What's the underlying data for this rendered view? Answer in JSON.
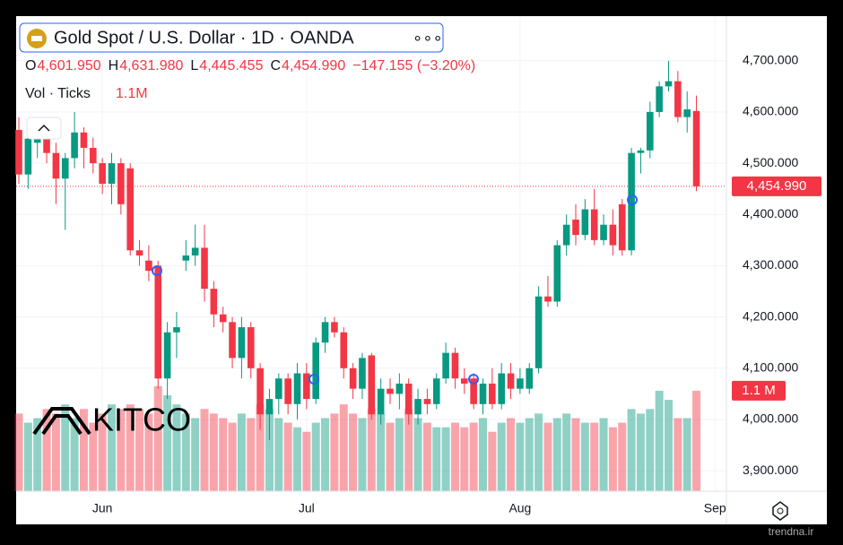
{
  "header": {
    "title": "Gold Spot / U.S. Dollar · 1D · OANDA",
    "ohlc": [
      {
        "key": "O",
        "value": "4,601.950"
      },
      {
        "key": "H",
        "value": "4,631.980"
      },
      {
        "key": "L",
        "value": "4,445.455"
      },
      {
        "key": "C",
        "value": "4,454.990"
      }
    ],
    "change": "−147.155 (−3.20%)",
    "volume_title": "Vol · Ticks",
    "volume_value": "1.1M"
  },
  "watermark": "KITCO",
  "footer": "trendna.ir",
  "chart_data": {
    "type": "candlestick",
    "categories": [
      null,
      null,
      null,
      null,
      null,
      null,
      null,
      null,
      null,
      "Jun",
      null,
      null,
      null,
      null,
      null,
      null,
      null,
      null,
      null,
      null,
      null,
      null,
      null,
      null,
      null,
      null,
      null,
      null,
      null,
      null,
      null,
      "Jul",
      null,
      null,
      null,
      null,
      null,
      null,
      null,
      null,
      null,
      null,
      null,
      null,
      null,
      null,
      null,
      null,
      null,
      null,
      null,
      null,
      null,
      null,
      "Aug",
      null,
      null,
      null,
      null,
      null,
      null,
      null,
      null,
      null,
      null,
      null,
      null,
      null,
      null,
      null,
      null,
      null,
      null,
      null,
      null,
      "Sep"
    ],
    "open": [
      4565,
      4478,
      4540,
      4560,
      4520,
      4470,
      4510,
      4560,
      4530,
      4500,
      4460,
      4500,
      4490,
      4330,
      4310,
      4300,
      4080,
      4170,
      4310,
      4320,
      4335,
      4255,
      4205,
      4190,
      4120,
      4180,
      4100,
      4010,
      4040,
      4080,
      4030,
      4090,
      4040,
      4150,
      4190,
      4170,
      4100,
      4060,
      4125,
      4010,
      4060,
      4050,
      4070,
      4010,
      4040,
      4030,
      4080,
      4130,
      4080,
      4080,
      4030,
      4070,
      4030,
      4090,
      4060,
      4060,
      4100,
      4240,
      4230,
      4340,
      4390,
      4360,
      4410,
      4350,
      4380,
      4420,
      4330,
      4520,
      4525,
      4600,
      4650,
      4660,
      4590,
      4601.95,
      null,
      null
    ],
    "high": [
      4590,
      4560,
      4580,
      4570,
      4540,
      4520,
      4600,
      4570,
      4550,
      4510,
      4520,
      4510,
      4500,
      4350,
      4340,
      4310,
      4190,
      4210,
      4350,
      4380,
      4380,
      4270,
      4220,
      4200,
      4200,
      4190,
      4110,
      4060,
      4090,
      4090,
      4110,
      4110,
      4160,
      4200,
      4200,
      4180,
      4110,
      4130,
      4130,
      4080,
      4080,
      4090,
      4080,
      4060,
      4060,
      4090,
      4150,
      4140,
      4100,
      4090,
      4080,
      4100,
      4110,
      4110,
      4100,
      4110,
      4260,
      4280,
      4350,
      4400,
      4420,
      4430,
      4450,
      4400,
      4410,
      4430,
      4530,
      4530,
      4620,
      4660,
      4700,
      4680,
      4640,
      4631.98,
      null,
      null
    ],
    "low": [
      4460,
      4450,
      4510,
      4500,
      4420,
      4370,
      4490,
      4490,
      4480,
      4440,
      4420,
      4400,
      4320,
      4300,
      4270,
      4060,
      4040,
      4120,
      4290,
      4300,
      4230,
      4180,
      4170,
      4100,
      4080,
      4080,
      3980,
      3960,
      4010,
      4010,
      4000,
      4020,
      4030,
      4130,
      4160,
      4080,
      4040,
      4040,
      4000,
      3990,
      4030,
      4020,
      3990,
      3990,
      4010,
      4020,
      4070,
      4060,
      4050,
      4020,
      4010,
      4020,
      4020,
      4040,
      4050,
      4050,
      4090,
      4220,
      4220,
      4320,
      4340,
      4350,
      4340,
      4340,
      4320,
      4320,
      4320,
      4480,
      4510,
      4590,
      4640,
      4580,
      4560,
      4445.455,
      null,
      null
    ],
    "close": [
      4478,
      4548,
      4560,
      4520,
      4470,
      4510,
      4560,
      4530,
      4500,
      4460,
      4500,
      4420,
      4330,
      4320,
      4290,
      4080,
      4170,
      4180,
      4320,
      4335,
      4255,
      4205,
      4190,
      4120,
      4180,
      4100,
      4010,
      4040,
      4080,
      4030,
      4090,
      4040,
      4150,
      4190,
      4170,
      4100,
      4060,
      4120,
      4010,
      4060,
      4050,
      4070,
      4010,
      4040,
      4030,
      4080,
      4130,
      4080,
      4070,
      4030,
      4070,
      4030,
      4090,
      4060,
      4080,
      4100,
      4240,
      4230,
      4340,
      4380,
      4360,
      4410,
      4350,
      4380,
      4340,
      4330,
      4520,
      4525,
      4600,
      4650,
      4660,
      4590,
      4605,
      4454.99,
      null,
      null
    ],
    "volume": [
      0.85,
      0.75,
      0.8,
      0.9,
      0.85,
      0.95,
      0.8,
      0.9,
      0.75,
      0.85,
      0.95,
      0.9,
      0.95,
      0.9,
      0.85,
      1.15,
      1.05,
      0.95,
      0.85,
      0.8,
      0.9,
      0.85,
      0.8,
      0.75,
      0.85,
      0.8,
      0.95,
      0.9,
      0.8,
      0.75,
      0.7,
      0.65,
      0.75,
      0.8,
      0.85,
      0.95,
      0.85,
      0.8,
      0.9,
      0.85,
      0.75,
      0.8,
      0.9,
      0.8,
      0.75,
      0.7,
      0.7,
      0.75,
      0.7,
      0.75,
      0.8,
      0.65,
      0.75,
      0.8,
      0.75,
      0.8,
      0.85,
      0.75,
      0.8,
      0.85,
      0.8,
      0.75,
      0.75,
      0.8,
      0.7,
      0.75,
      0.9,
      0.85,
      0.9,
      1.1,
      1.0,
      0.8,
      0.8,
      1.1,
      null,
      null
    ],
    "volume_label": "1.1 M",
    "volume_ylim": [
      0,
      5.2
    ],
    "last_price": {
      "value": 4454.99,
      "label": "4,454.990"
    },
    "up_color": "#089981",
    "down_color": "#f23645",
    "grid": true,
    "ylim": [
      3860,
      4787
    ],
    "yticks": [
      {
        "value": 3900,
        "label": "3,900.000"
      },
      {
        "value": 4000,
        "label": "4,000.000"
      },
      {
        "value": 4100,
        "label": "4,100.000"
      },
      {
        "value": 4200,
        "label": "4,200.000"
      },
      {
        "value": 4300,
        "label": "4,300.000"
      },
      {
        "value": 4400,
        "label": "4,400.000"
      },
      {
        "value": 4500,
        "label": "4,500.000"
      },
      {
        "value": 4600,
        "label": "4,600.000"
      },
      {
        "value": 4700,
        "label": "4,700.000"
      }
    ]
  }
}
